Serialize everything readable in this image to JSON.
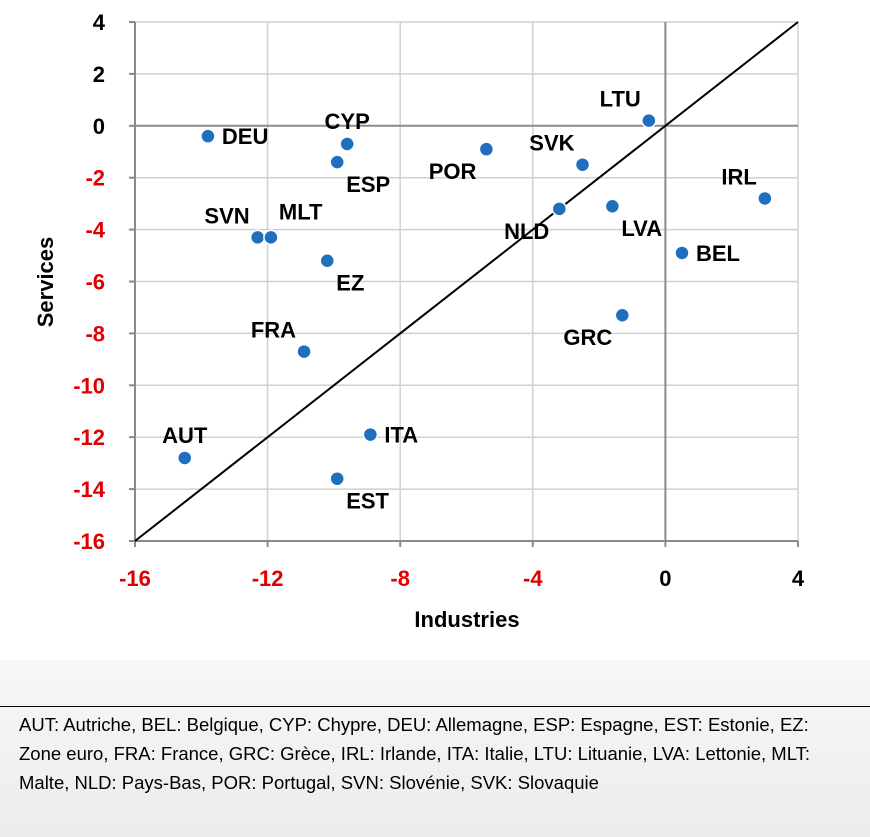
{
  "chart_data": {
    "type": "scatter",
    "xlabel": "Industries",
    "ylabel": "Services",
    "xlim": [
      -16,
      4
    ],
    "ylim": [
      -16,
      4
    ],
    "xticks": [
      -16,
      -12,
      -8,
      -4,
      0,
      4
    ],
    "yticks": [
      4,
      2,
      0,
      -2,
      -4,
      -6,
      -8,
      -10,
      -12,
      -14,
      -16
    ],
    "grid": true,
    "reference_line": "y = x",
    "colors": {
      "point": "#1f6fbf",
      "point_edge": "#ffffff",
      "x_tick_negative": "#e00000",
      "y_tick_negative": "#e00000",
      "tick_positive": "#000000",
      "grid": "#d0d0d0",
      "diagonal": "#000000"
    },
    "points": [
      {
        "label": "DEU",
        "x": -13.8,
        "y": -0.4,
        "label_pos": "right"
      },
      {
        "label": "CYP",
        "x": -9.6,
        "y": -0.7,
        "label_pos": "above"
      },
      {
        "label": "ESP",
        "x": -9.9,
        "y": -1.4,
        "label_pos": "below-right"
      },
      {
        "label": "SVN",
        "x": -12.3,
        "y": -4.3,
        "label_pos": "above-left"
      },
      {
        "label": "MLT",
        "x": -11.9,
        "y": -4.3,
        "label_pos": "above-right"
      },
      {
        "label": "EZ",
        "x": -10.2,
        "y": -5.2,
        "label_pos": "below-right"
      },
      {
        "label": "FRA",
        "x": -10.9,
        "y": -8.7,
        "label_pos": "above-left"
      },
      {
        "label": "AUT",
        "x": -14.5,
        "y": -12.8,
        "label_pos": "above"
      },
      {
        "label": "ITA",
        "x": -8.9,
        "y": -11.9,
        "label_pos": "right"
      },
      {
        "label": "EST",
        "x": -9.9,
        "y": -13.6,
        "label_pos": "below-right"
      },
      {
        "label": "POR",
        "x": -5.4,
        "y": -0.9,
        "label_pos": "below-left"
      },
      {
        "label": "SVK",
        "x": -2.5,
        "y": -1.5,
        "label_pos": "above-left"
      },
      {
        "label": "LTU",
        "x": -0.5,
        "y": 0.2,
        "label_pos": "above-left"
      },
      {
        "label": "NLD",
        "x": -3.2,
        "y": -3.2,
        "label_pos": "below-left"
      },
      {
        "label": "LVA",
        "x": -1.6,
        "y": -3.1,
        "label_pos": "below-right"
      },
      {
        "label": "IRL",
        "x": 3.0,
        "y": -2.8,
        "label_pos": "above-left"
      },
      {
        "label": "BEL",
        "x": 0.5,
        "y": -4.9,
        "label_pos": "right"
      },
      {
        "label": "GRC",
        "x": -1.3,
        "y": -7.3,
        "label_pos": "below-left"
      }
    ]
  },
  "footnote": "AUT: Autriche, BEL: Belgique, CYP: Chypre, DEU: Allemagne, ESP: Espagne, EST: Estonie, EZ: Zone euro, FRA: France, GRC: Grèce, IRL: Irlande, ITA: Italie, LTU: Lituanie, LVA: Lettonie, MLT: Malte, NLD: Pays-Bas, POR: Portugal, SVN: Slovénie, SVK: Slovaquie"
}
